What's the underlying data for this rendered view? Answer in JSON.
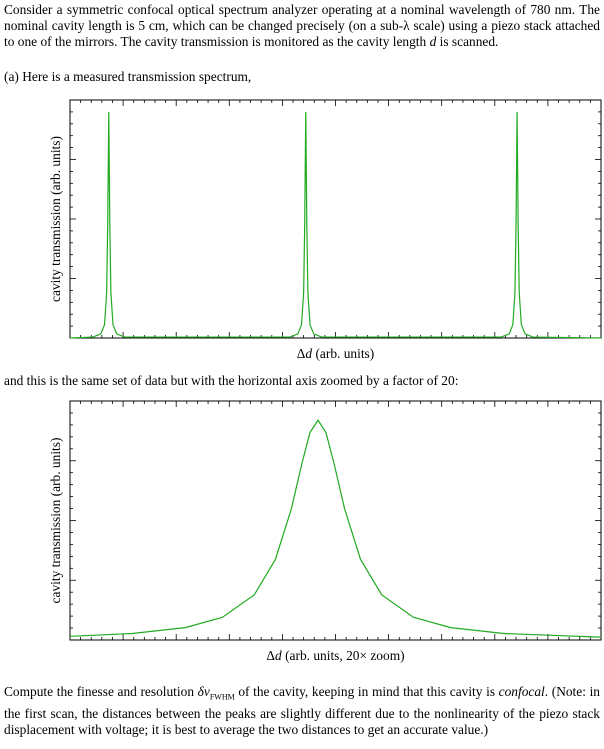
{
  "intro": {
    "t1": "Consider a symmetric confocal optical spectrum analyzer operating at a nominal wavelength of 780 nm. The nominal cavity length is 5 cm, which can be changed precisely (on a sub-λ scale) using a piezo stack attached to one of the mirrors. The cavity transmission is monitored as the cavity length ",
    "var": "d",
    "t2": " is scanned."
  },
  "part_a": "(a) Here is a measured transmission spectrum,",
  "between": "and this is the same set of data but with the horizontal axis zoomed by a factor of 20:",
  "question": {
    "t1": "Compute the finesse and resolution ",
    "sym": "δν",
    "sub": "FWHM",
    "t2": " of the cavity, keeping in mind that this cavity is ",
    "em": "confocal",
    "t3": ". (Note: in the first scan, the distances between the peaks are slightly different due to the nonlinearity of the piezo stack displacement with voltage; it is best to average the two distances to get an accurate value.)"
  },
  "chart_data": [
    {
      "type": "line",
      "ylabel": "cavity transmission (arb. units)",
      "xlabel_prefix": "Δ",
      "xlabel_var": "d",
      "xlabel": " (arb. units)",
      "xlim": [
        0,
        100
      ],
      "ylim": [
        0,
        1
      ],
      "series": [
        {
          "color": "#22aa22",
          "x": [
            0,
            4.3,
            5.8,
            6.5,
            6.9,
            7.1,
            7.3,
            7.5,
            7.7,
            8.1,
            8.8,
            10.3,
            41.4,
            42.9,
            43.6,
            44.0,
            44.2,
            44.4,
            44.6,
            44.8,
            45.2,
            45.9,
            47.4,
            81.2,
            82.7,
            83.4,
            83.8,
            84.0,
            84.2,
            84.4,
            84.6,
            85.0,
            85.7,
            87.2,
            100
          ],
          "values": [
            0,
            0.004,
            0.017,
            0.056,
            0.19,
            0.475,
            0.95,
            0.475,
            0.19,
            0.056,
            0.017,
            0.004,
            0.004,
            0.017,
            0.056,
            0.19,
            0.475,
            0.95,
            0.475,
            0.19,
            0.056,
            0.017,
            0.004,
            0.004,
            0.017,
            0.056,
            0.19,
            0.475,
            0.95,
            0.475,
            0.19,
            0.056,
            0.017,
            0.004,
            0
          ]
        }
      ]
    },
    {
      "type": "line",
      "ylabel": "cavity transmission (arb. units)",
      "xlabel_prefix": "Δ",
      "xlabel_var": "d",
      "xlabel": " (arb. units, 20× zoom)",
      "xlim": [
        0,
        100
      ],
      "ylim": [
        0,
        1
      ],
      "series": [
        {
          "color": "#22aa22",
          "x": [
            0,
            11.7,
            21.7,
            28.7,
            34.7,
            38.7,
            41.7,
            43.7,
            45.2,
            46.7,
            48.2,
            49.7,
            51.7,
            54.7,
            58.7,
            64.7,
            71.7,
            81.7,
            100
          ],
          "values": [
            0.0154,
            0.0271,
            0.0517,
            0.0947,
            0.189,
            0.338,
            0.55,
            0.741,
            0.868,
            0.92,
            0.868,
            0.741,
            0.55,
            0.338,
            0.189,
            0.0947,
            0.0517,
            0.0271,
            0.0119
          ]
        }
      ]
    }
  ]
}
